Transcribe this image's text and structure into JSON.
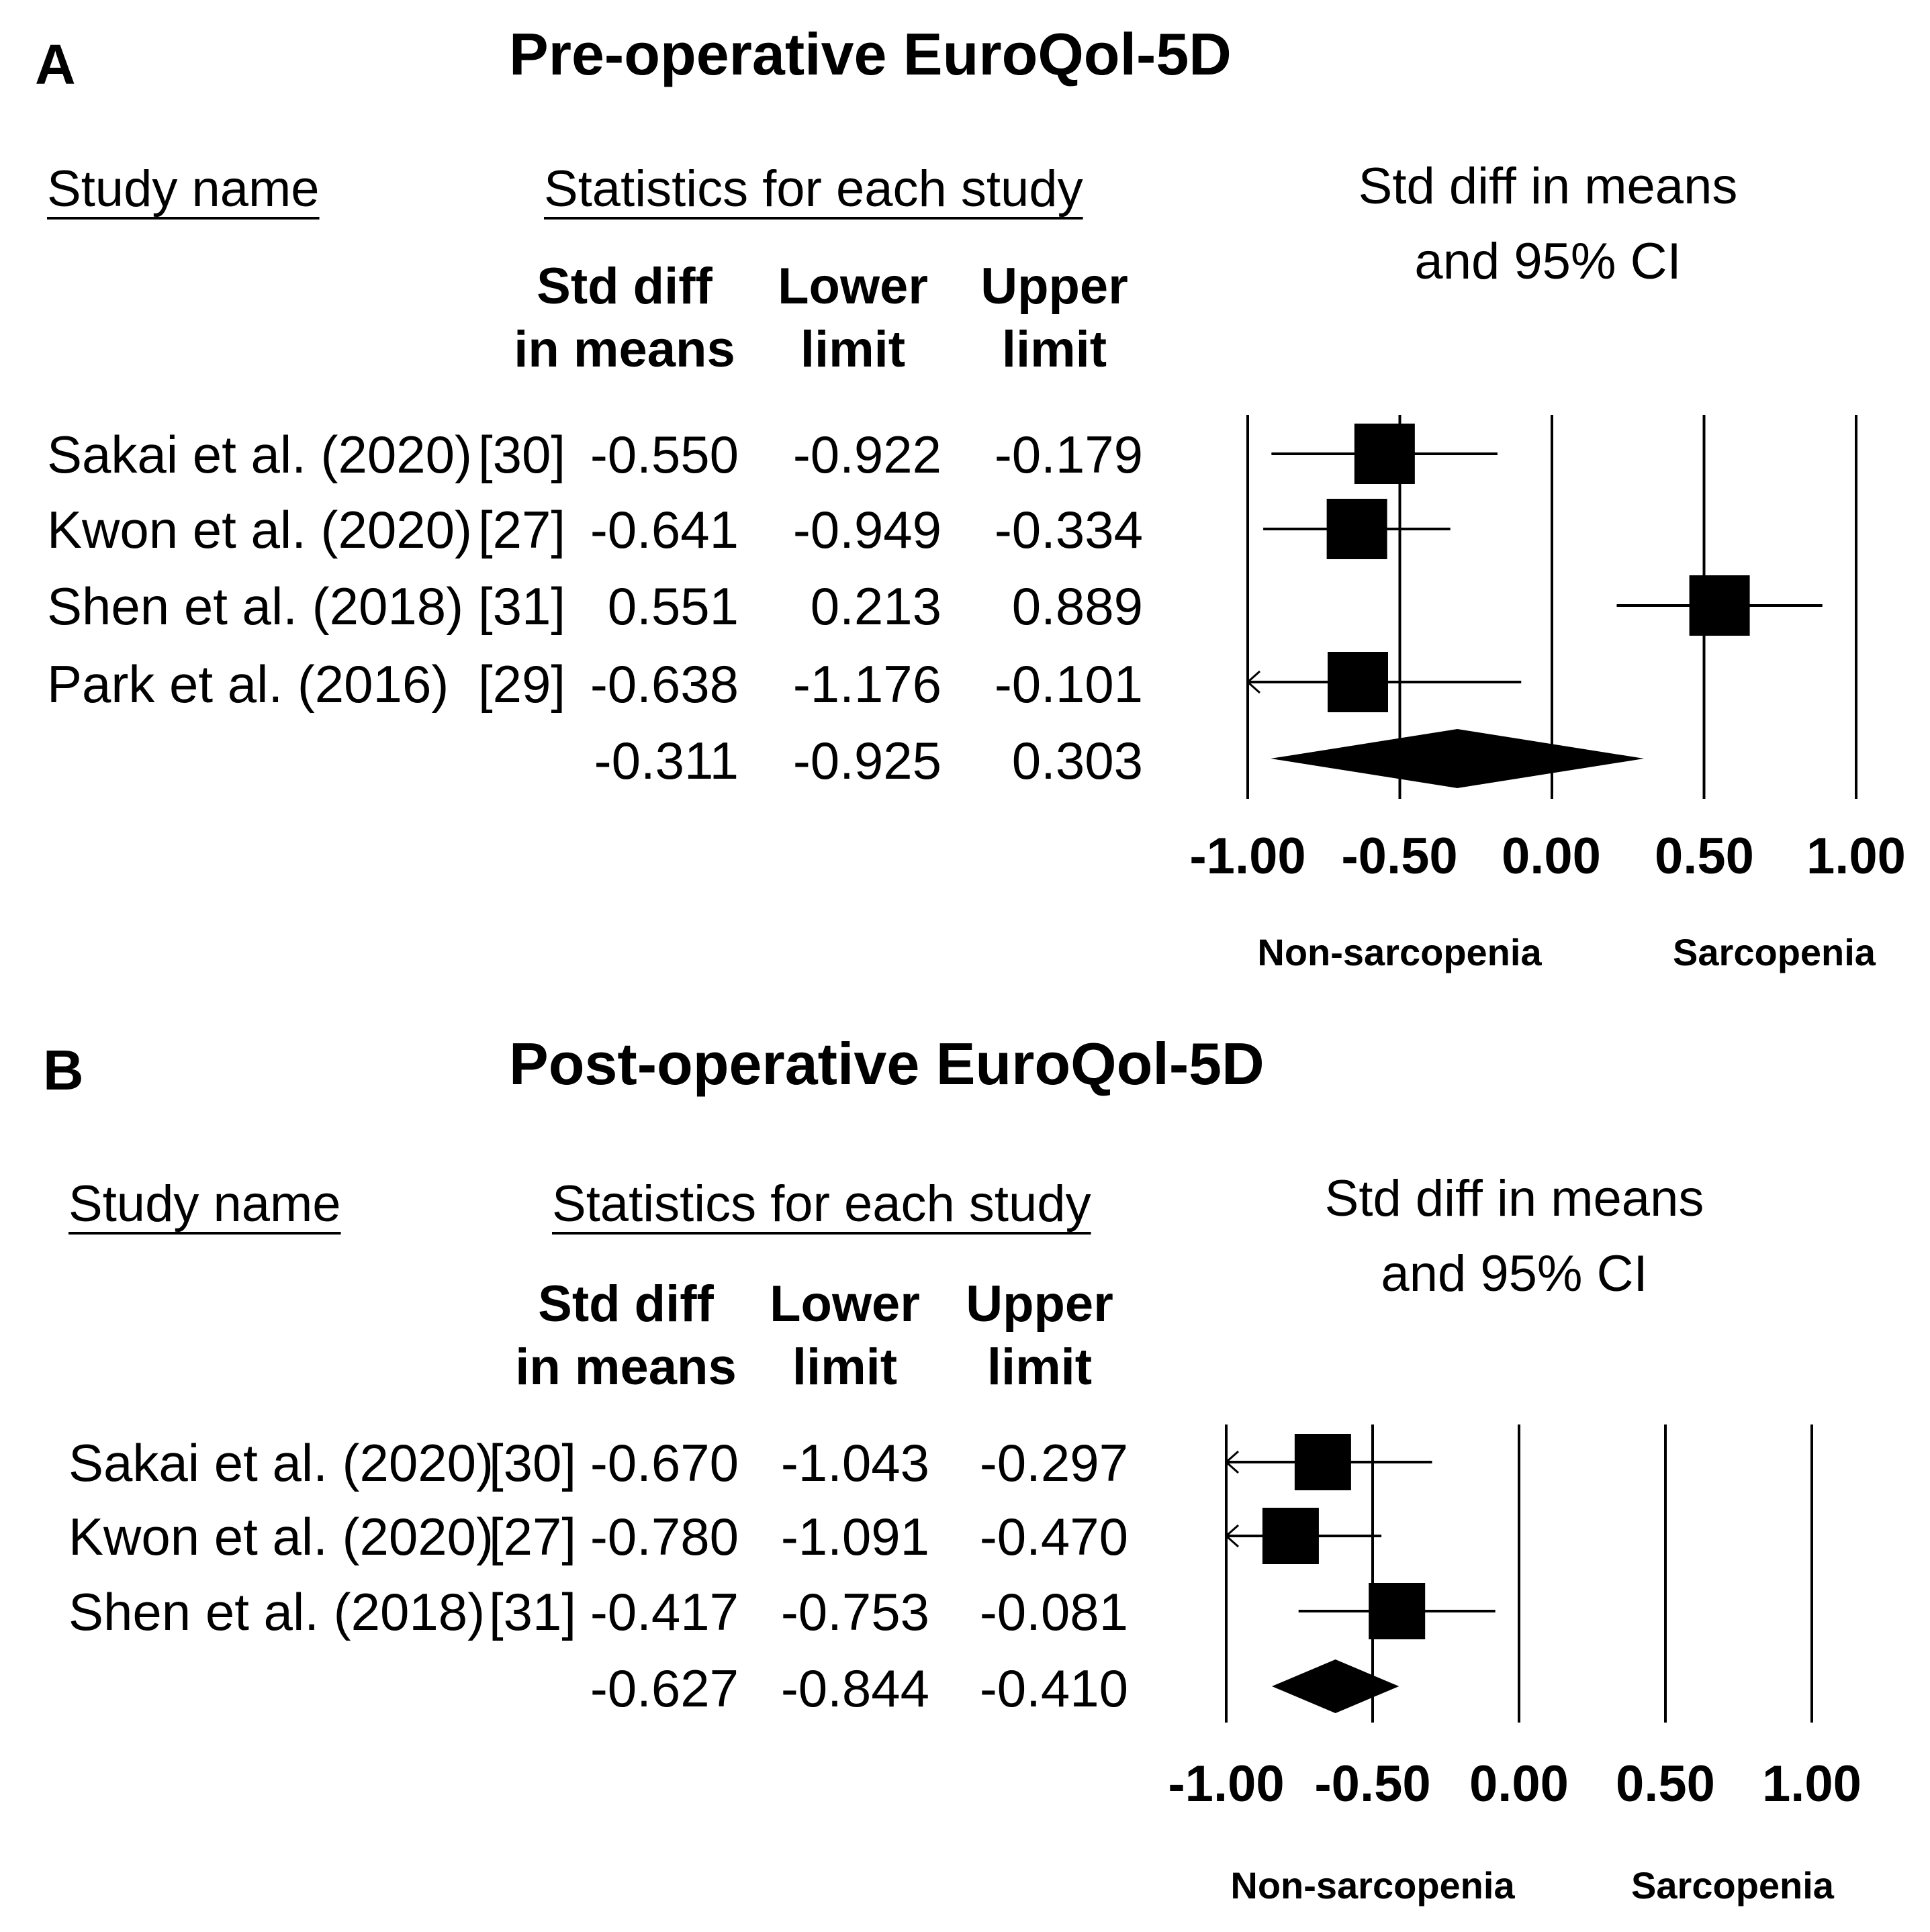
{
  "chart_data": [
    {
      "type": "forest",
      "panel_label": "A",
      "title": "Pre-operative EuroQol-5D",
      "study_header": "Study name",
      "stats_header": "Statistics for each study",
      "col_headers": [
        {
          "line1": "Std diff",
          "line2": "in means"
        },
        {
          "line1": "Lower",
          "line2": "limit"
        },
        {
          "line1": "Upper",
          "line2": "limit"
        }
      ],
      "ci_header_line1": "Std diff in means",
      "ci_header_line2": "and 95% CI",
      "studies": [
        {
          "name": "Sakai et al. (2020)",
          "ref": "[30]",
          "smd": -0.55,
          "lower": -0.922,
          "upper": -0.179,
          "smd_text": "-0.550",
          "lower_text": "-0.922",
          "upper_text": "-0.179"
        },
        {
          "name": "Kwon et al. (2020)",
          "ref": "[27]",
          "smd": -0.641,
          "lower": -0.949,
          "upper": -0.334,
          "smd_text": "-0.641",
          "lower_text": "-0.949",
          "upper_text": "-0.334"
        },
        {
          "name": "Shen et al. (2018)",
          "ref": "[31]",
          "smd": 0.551,
          "lower": 0.213,
          "upper": 0.889,
          "smd_text": "0.551",
          "lower_text": "0.213",
          "upper_text": "0.889"
        },
        {
          "name": "Park et al. (2016)",
          "ref": "[29]",
          "smd": -0.638,
          "lower": -1.176,
          "upper": -0.101,
          "smd_text": "-0.638",
          "lower_text": "-1.176",
          "upper_text": "-0.101"
        }
      ],
      "summary": {
        "smd": -0.311,
        "lower": -0.925,
        "upper": 0.303,
        "smd_text": "-0.311",
        "lower_text": "-0.925",
        "upper_text": "0.303"
      },
      "x_ticks": [
        -1.0,
        -0.5,
        0.0,
        0.5,
        1.0
      ],
      "x_tick_labels": [
        "-1.00",
        "-0.50",
        "0.00",
        "0.50",
        "1.00"
      ],
      "xlim": [
        -1.0,
        1.0
      ],
      "favors_left": "Non-sarcopenia",
      "favors_right": "Sarcopenia"
    },
    {
      "type": "forest",
      "panel_label": "B",
      "title": "Post-operative EuroQol-5D",
      "study_header": "Study name",
      "stats_header": "Statistics for each study",
      "col_headers": [
        {
          "line1": "Std diff",
          "line2": "in means"
        },
        {
          "line1": "Lower",
          "line2": "limit"
        },
        {
          "line1": "Upper",
          "line2": "limit"
        }
      ],
      "ci_header_line1": "Std diff in means",
      "ci_header_line2": "and 95% CI",
      "studies": [
        {
          "name": "Sakai et al. (2020)",
          "ref": "[30]",
          "smd": -0.67,
          "lower": -1.043,
          "upper": -0.297,
          "smd_text": "-0.670",
          "lower_text": "-1.043",
          "upper_text": "-0.297"
        },
        {
          "name": "Kwon et al. (2020)",
          "ref": "[27]",
          "smd": -0.78,
          "lower": -1.091,
          "upper": -0.47,
          "smd_text": "-0.780",
          "lower_text": "-1.091",
          "upper_text": "-0.470"
        },
        {
          "name": "Shen et al. (2018)",
          "ref": "[31]",
          "smd": -0.417,
          "lower": -0.753,
          "upper": -0.081,
          "smd_text": "-0.417",
          "lower_text": "-0.753",
          "upper_text": "-0.081"
        }
      ],
      "summary": {
        "smd": -0.627,
        "lower": -0.844,
        "upper": -0.41,
        "smd_text": "-0.627",
        "lower_text": "-0.844",
        "upper_text": "-0.410"
      },
      "x_ticks": [
        -1.0,
        -0.5,
        0.0,
        0.5,
        1.0
      ],
      "x_tick_labels": [
        "-1.00",
        "-0.50",
        "0.00",
        "0.50",
        "1.00"
      ],
      "xlim": [
        -1.0,
        1.0
      ],
      "favors_left": "Non-sarcopenia",
      "favors_right": "Sarcopenia"
    }
  ]
}
